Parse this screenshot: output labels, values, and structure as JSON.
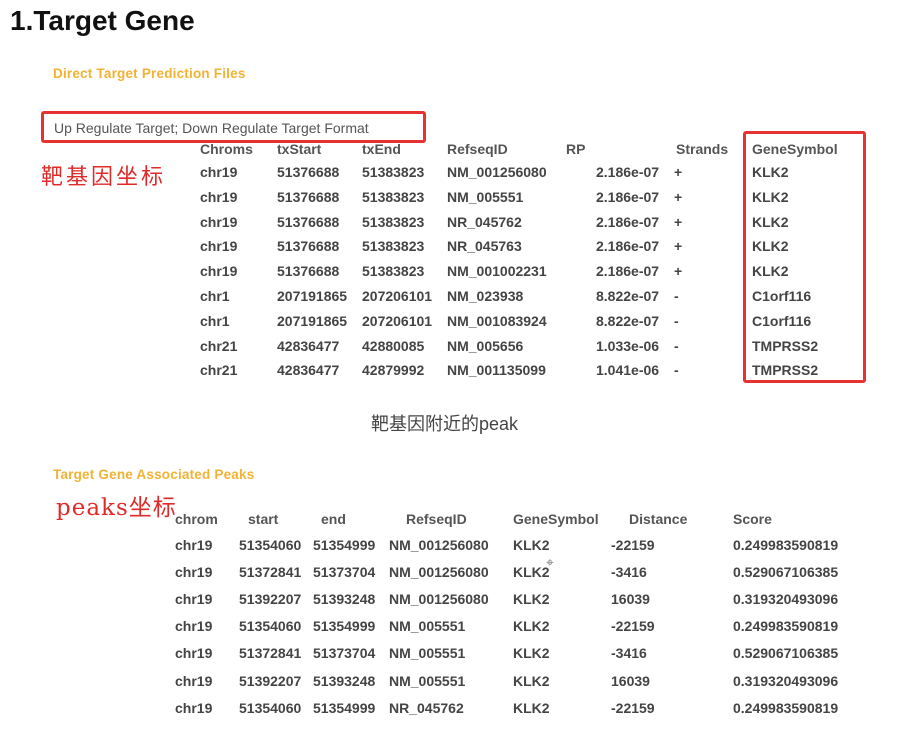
{
  "title": "1.Target Gene",
  "section1": {
    "label": "Direct Target Prediction Files",
    "format_text": "Up Regulate Target; Down Regulate Target Format",
    "annotation": "靶基因坐标",
    "headers": [
      "Chroms",
      "txStart",
      "txEnd",
      "RefseqID",
      "RP",
      "Strands",
      "GeneSymbol"
    ],
    "rows": [
      [
        "chr19",
        "51376688",
        "51383823",
        "NM_001256080",
        "2.186e-07",
        "+",
        "KLK2"
      ],
      [
        "chr19",
        "51376688",
        "51383823",
        "NM_005551",
        "2.186e-07",
        "+",
        "KLK2"
      ],
      [
        "chr19",
        "51376688",
        "51383823",
        "NR_045762",
        "2.186e-07",
        "+",
        "KLK2"
      ],
      [
        "chr19",
        "51376688",
        "51383823",
        "NR_045763",
        "2.186e-07",
        "+",
        "KLK2"
      ],
      [
        "chr19",
        "51376688",
        "51383823",
        "NM_001002231",
        "2.186e-07",
        "+",
        "KLK2"
      ],
      [
        "chr1",
        "207191865",
        "207206101",
        "NM_023938",
        "8.822e-07",
        "-",
        "C1orf116"
      ],
      [
        "chr1",
        "207191865",
        "207206101",
        "NM_001083924",
        "8.822e-07",
        "-",
        "C1orf116"
      ],
      [
        "chr21",
        "42836477",
        "42880085",
        "NM_005656",
        "1.033e-06",
        "-",
        "TMPRSS2"
      ],
      [
        "chr21",
        "42836477",
        "42879992",
        "NM_001135099",
        "1.041e-06",
        "-",
        "TMPRSS2"
      ]
    ]
  },
  "caption": "靶基因附近的peak",
  "section2": {
    "label": "Target Gene Associated Peaks",
    "annotation": "peaks坐标",
    "headers": [
      "chrom",
      "start",
      "end",
      "RefseqID",
      "GeneSymbol",
      "Distance",
      "Score"
    ],
    "rows": [
      [
        "chr19",
        "51354060",
        "51354999",
        "NM_001256080",
        "KLK2",
        "-22159",
        "0.249983590819"
      ],
      [
        "chr19",
        "51372841",
        "51373704",
        "NM_001256080",
        "KLK2",
        "-3416",
        "0.529067106385"
      ],
      [
        "chr19",
        "51392207",
        "51393248",
        "NM_001256080",
        "KLK2",
        "16039",
        "0.319320493096"
      ],
      [
        "chr19",
        "51354060",
        "51354999",
        "NM_005551",
        "KLK2",
        "-22159",
        "0.249983590819"
      ],
      [
        "chr19",
        "51372841",
        "51373704",
        "NM_005551",
        "KLK2",
        "-3416",
        "0.529067106385"
      ],
      [
        "chr19",
        "51392207",
        "51393248",
        "NM_005551",
        "KLK2",
        "16039",
        "0.319320493096"
      ],
      [
        "chr19",
        "51354060",
        "51354999",
        "NR_045762",
        "KLK2",
        "-22159",
        "0.249983590819"
      ]
    ]
  },
  "colors": {
    "section_label": "#f2b233",
    "annotation_red": "#e02a2a",
    "highlight_box": "#e53333"
  }
}
